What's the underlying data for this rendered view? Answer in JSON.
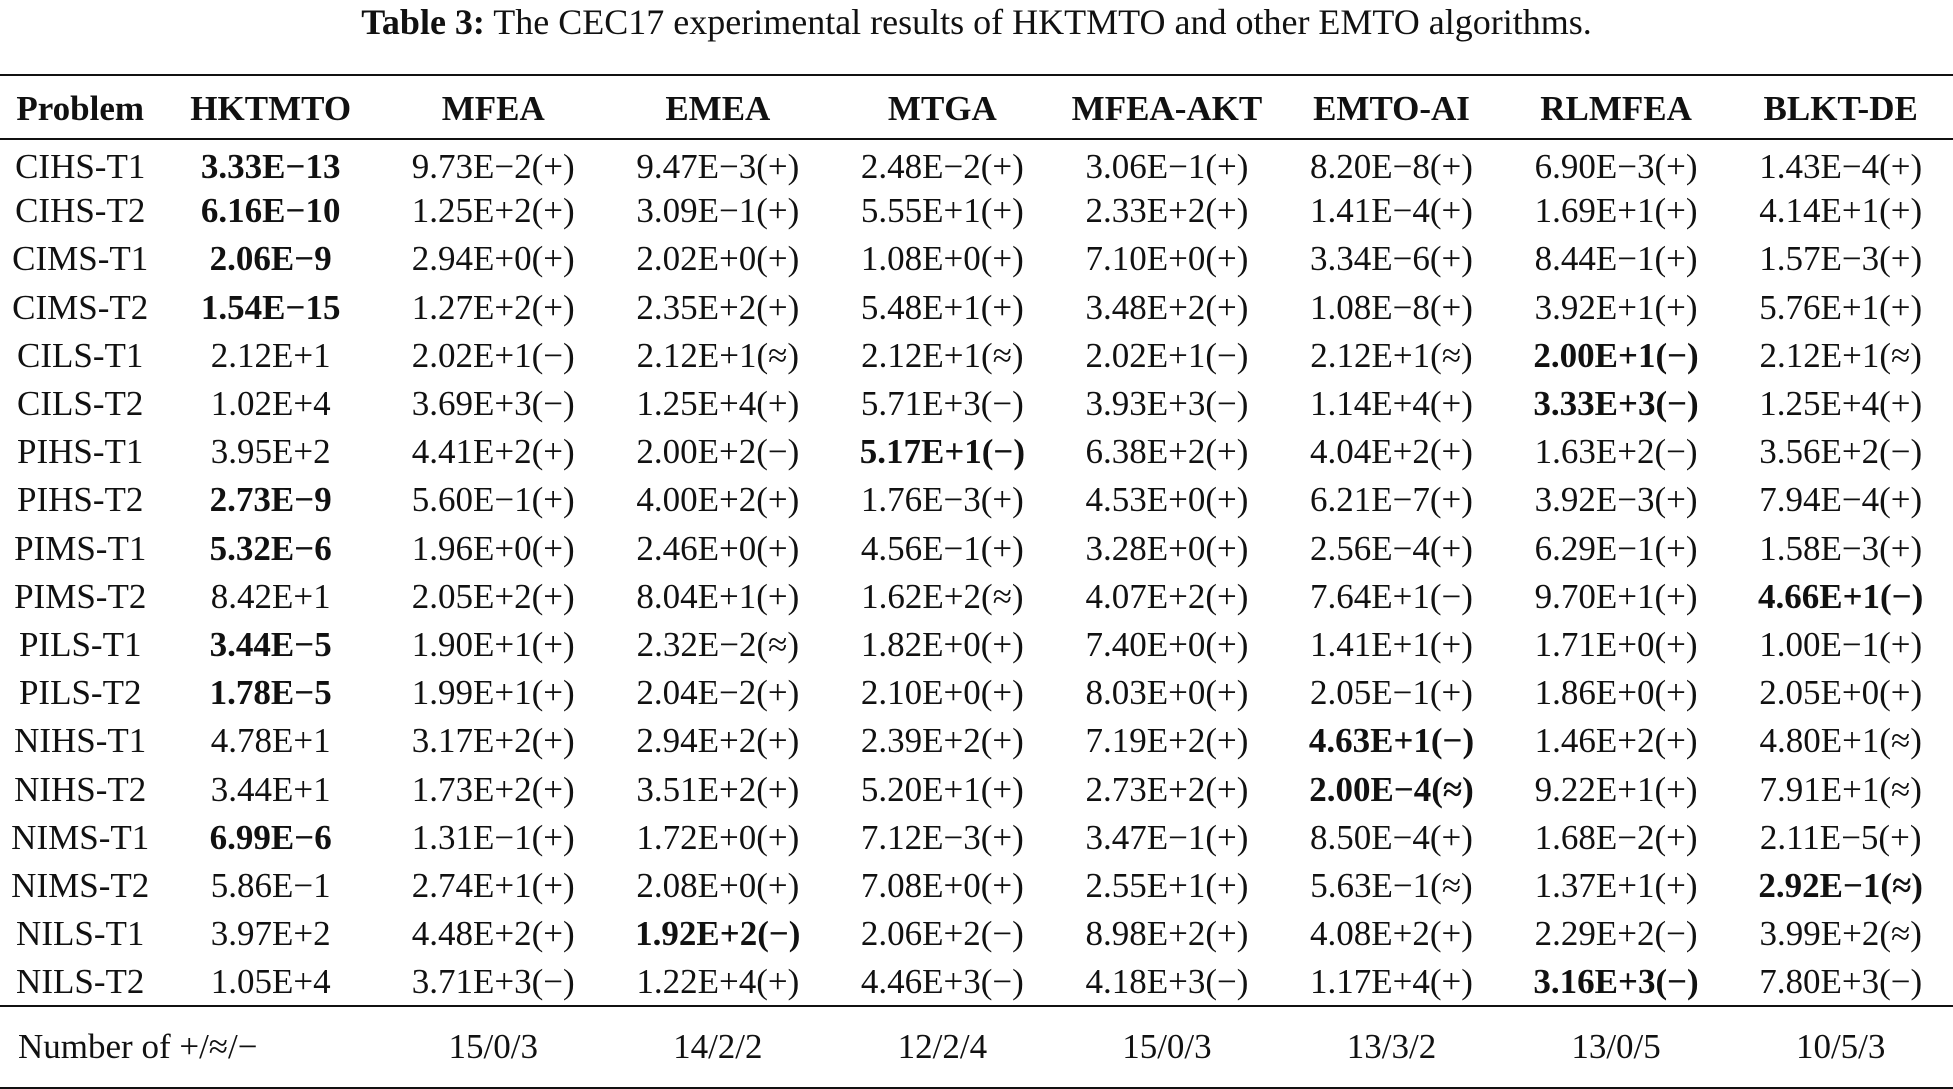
{
  "caption": {
    "label": "Table 3:",
    "text": "The CEC17 experimental results of HKTMTO and other EMTO algorithms."
  },
  "table": {
    "headers": [
      "Problem",
      "HKTMTO",
      "MFEA",
      "EMEA",
      "MTGA",
      "MFEA-AKT",
      "EMTO-AI",
      "RLMFEA",
      "BLKT-DE"
    ],
    "rows": [
      {
        "cells": [
          "CIHS-T1",
          "3.33E−13",
          "9.73E−2(+)",
          "9.47E−3(+)",
          "2.48E−2(+)",
          "3.06E−1(+)",
          "8.20E−8(+)",
          "6.90E−3(+)",
          "1.43E−4(+)"
        ],
        "bold": [
          1
        ]
      },
      {
        "cells": [
          "CIHS-T2",
          "6.16E−10",
          "1.25E+2(+)",
          "3.09E−1(+)",
          "5.55E+1(+)",
          "2.33E+2(+)",
          "1.41E−4(+)",
          "1.69E+1(+)",
          "4.14E+1(+)"
        ],
        "bold": [
          1
        ]
      },
      {
        "cells": [
          "CIMS-T1",
          "2.06E−9",
          "2.94E+0(+)",
          "2.02E+0(+)",
          "1.08E+0(+)",
          "7.10E+0(+)",
          "3.34E−6(+)",
          "8.44E−1(+)",
          "1.57E−3(+)"
        ],
        "bold": [
          1
        ]
      },
      {
        "cells": [
          "CIMS-T2",
          "1.54E−15",
          "1.27E+2(+)",
          "2.35E+2(+)",
          "5.48E+1(+)",
          "3.48E+2(+)",
          "1.08E−8(+)",
          "3.92E+1(+)",
          "5.76E+1(+)"
        ],
        "bold": [
          1
        ]
      },
      {
        "cells": [
          "CILS-T1",
          "2.12E+1",
          "2.02E+1(−)",
          "2.12E+1(≈)",
          "2.12E+1(≈)",
          "2.02E+1(−)",
          "2.12E+1(≈)",
          "2.00E+1(−)",
          "2.12E+1(≈)"
        ],
        "bold": [
          7
        ]
      },
      {
        "cells": [
          "CILS-T2",
          "1.02E+4",
          "3.69E+3(−)",
          "1.25E+4(+)",
          "5.71E+3(−)",
          "3.93E+3(−)",
          "1.14E+4(+)",
          "3.33E+3(−)",
          "1.25E+4(+)"
        ],
        "bold": [
          7
        ]
      },
      {
        "cells": [
          "PIHS-T1",
          "3.95E+2",
          "4.41E+2(+)",
          "2.00E+2(−)",
          "5.17E+1(−)",
          "6.38E+2(+)",
          "4.04E+2(+)",
          "1.63E+2(−)",
          "3.56E+2(−)"
        ],
        "bold": [
          4
        ]
      },
      {
        "cells": [
          "PIHS-T2",
          "2.73E−9",
          "5.60E−1(+)",
          "4.00E+2(+)",
          "1.76E−3(+)",
          "4.53E+0(+)",
          "6.21E−7(+)",
          "3.92E−3(+)",
          "7.94E−4(+)"
        ],
        "bold": [
          1
        ]
      },
      {
        "cells": [
          "PIMS-T1",
          "5.32E−6",
          "1.96E+0(+)",
          "2.46E+0(+)",
          "4.56E−1(+)",
          "3.28E+0(+)",
          "2.56E−4(+)",
          "6.29E−1(+)",
          "1.58E−3(+)"
        ],
        "bold": [
          1
        ]
      },
      {
        "cells": [
          "PIMS-T2",
          "8.42E+1",
          "2.05E+2(+)",
          "8.04E+1(+)",
          "1.62E+2(≈)",
          "4.07E+2(+)",
          "7.64E+1(−)",
          "9.70E+1(+)",
          "4.66E+1(−)"
        ],
        "bold": [
          8
        ]
      },
      {
        "cells": [
          "PILS-T1",
          "3.44E−5",
          "1.90E+1(+)",
          "2.32E−2(≈)",
          "1.82E+0(+)",
          "7.40E+0(+)",
          "1.41E+1(+)",
          "1.71E+0(+)",
          "1.00E−1(+)"
        ],
        "bold": [
          1
        ]
      },
      {
        "cells": [
          "PILS-T2",
          "1.78E−5",
          "1.99E+1(+)",
          "2.04E−2(+)",
          "2.10E+0(+)",
          "8.03E+0(+)",
          "2.05E−1(+)",
          "1.86E+0(+)",
          "2.05E+0(+)"
        ],
        "bold": [
          1
        ]
      },
      {
        "cells": [
          "NIHS-T1",
          "4.78E+1",
          "3.17E+2(+)",
          "2.94E+2(+)",
          "2.39E+2(+)",
          "7.19E+2(+)",
          "4.63E+1(−)",
          "1.46E+2(+)",
          "4.80E+1(≈)"
        ],
        "bold": [
          6
        ]
      },
      {
        "cells": [
          "NIHS-T2",
          "3.44E+1",
          "1.73E+2(+)",
          "3.51E+2(+)",
          "5.20E+1(+)",
          "2.73E+2(+)",
          "2.00E−4(≈)",
          "9.22E+1(+)",
          "7.91E+1(≈)"
        ],
        "bold": [
          6
        ]
      },
      {
        "cells": [
          "NIMS-T1",
          "6.99E−6",
          "1.31E−1(+)",
          "1.72E+0(+)",
          "7.12E−3(+)",
          "3.47E−1(+)",
          "8.50E−4(+)",
          "1.68E−2(+)",
          "2.11E−5(+)"
        ],
        "bold": [
          1
        ]
      },
      {
        "cells": [
          "NIMS-T2",
          "5.86E−1",
          "2.74E+1(+)",
          "2.08E+0(+)",
          "7.08E+0(+)",
          "2.55E+1(+)",
          "5.63E−1(≈)",
          "1.37E+1(+)",
          "2.92E−1(≈)"
        ],
        "bold": [
          8
        ]
      },
      {
        "cells": [
          "NILS-T1",
          "3.97E+2",
          "4.48E+2(+)",
          "1.92E+2(−)",
          "2.06E+2(−)",
          "8.98E+2(+)",
          "4.08E+2(+)",
          "2.29E+2(−)",
          "3.99E+2(≈)"
        ],
        "bold": [
          3
        ]
      },
      {
        "cells": [
          "NILS-T2",
          "1.05E+4",
          "3.71E+3(−)",
          "1.22E+4(+)",
          "4.46E+3(−)",
          "4.18E+3(−)",
          "1.17E+4(+)",
          "3.16E+3(−)",
          "7.80E+3(−)"
        ],
        "bold": [
          7
        ]
      }
    ],
    "summary": {
      "label": "Number of +/≈/−",
      "values": [
        "15/0/3",
        "14/2/2",
        "12/2/4",
        "15/0/3",
        "13/3/2",
        "13/0/5",
        "10/5/3"
      ]
    }
  }
}
